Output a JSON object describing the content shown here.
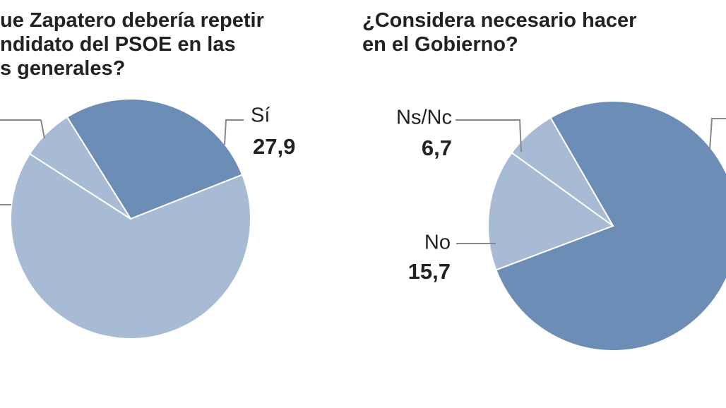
{
  "chart_data": [
    {
      "type": "pie",
      "title": [
        "ue Zapatero debería repetir",
        "ndidato del PSOE en las",
        "s generales?"
      ],
      "categories": [
        "Sí",
        null,
        null
      ],
      "values": [
        27.9,
        65.1,
        7.0
      ],
      "value_labels": [
        "27,9",
        null,
        null
      ],
      "colors": [
        "#6b8db6",
        "#a8bbd5",
        "#a8bbd5"
      ]
    },
    {
      "type": "pie",
      "title": [
        "¿Considera necesario hacer",
        "en el Gobierno?"
      ],
      "categories": [
        null,
        "No",
        "Ns/Nc"
      ],
      "values": [
        77.6,
        15.7,
        6.7
      ],
      "value_labels": [
        null,
        "15,7",
        "6,7"
      ],
      "colors": [
        "#6b8db6",
        "#a8bbd5",
        "#a8bbd5"
      ]
    }
  ]
}
